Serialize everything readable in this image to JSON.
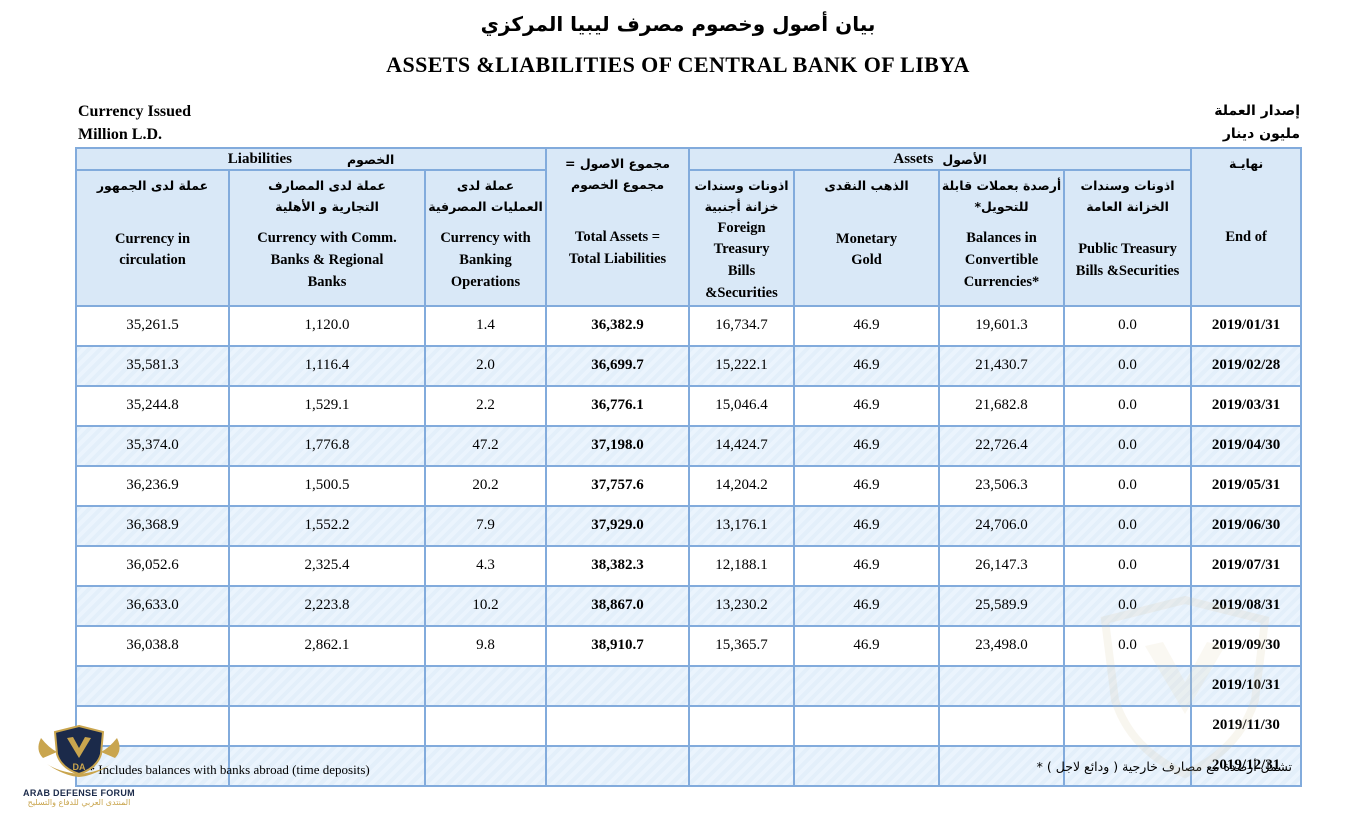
{
  "titles": {
    "arabic": "بيان أصول وخصوم مصرف ليبيا المركزي",
    "english": "ASSETS &LIABILITIES OF CENTRAL BANK OF LIBYA"
  },
  "corner_left": {
    "line1": "Currency Issued",
    "line2": "Million L.D."
  },
  "corner_right": {
    "line1": "إصدار العملة",
    "line2": "مليون دينار"
  },
  "groups": {
    "liabilities": {
      "en": "Liabilities",
      "ar": "الخصوم"
    },
    "assets": {
      "en": "Assets",
      "ar": "الأصول"
    }
  },
  "columns": [
    {
      "key": "currency-in-circulation",
      "ar": "عملة لدى الجمهور",
      "en": "Currency in\ncirculation"
    },
    {
      "key": "currency-with-comm-banks",
      "ar": "عملة لدى  المصارف\nالتجارية و الأهلية",
      "en": "Currency with Comm.\nBanks & Regional\nBanks"
    },
    {
      "key": "currency-with-banking-operations",
      "ar": "عملة لدى\nالعمليات المصرفية",
      "en": "Currency with\nBanking\nOperations"
    },
    {
      "key": "total-assets-total-liabilities",
      "ar": "مجموع الاصول =\nمجموع الخصوم",
      "en": "Total Assets =\nTotal Liabilities"
    },
    {
      "key": "foreign-treasury-bills-securities",
      "ar": "اذونات وسندات\nخزانة  أجنبية",
      "en": "Foreign\nTreasury\nBills\n&Securities"
    },
    {
      "key": "monetary-gold",
      "ar": "الذهب النقدى",
      "en": "Monetary\nGold"
    },
    {
      "key": "balances-in-convertible-currencies",
      "ar": "أرصدة بعملات قابلة\nللتحويل*",
      "en": "Balances in\nConvertible\nCurrencies*"
    },
    {
      "key": "public-treasury-bills-securities",
      "ar": "اذونات وسندات\nالخزانة العامة",
      "en": "Public Treasury\nBills &Securities"
    },
    {
      "key": "end-of",
      "ar": "نهايـة",
      "en": "End  of"
    }
  ],
  "table": {
    "column_keys": [
      "currency-in-circulation",
      "currency-with-comm-banks",
      "currency-with-banking-operations",
      "total-assets-total-liabilities",
      "foreign-treasury-bills-securities",
      "monetary-gold",
      "balances-in-convertible-currencies",
      "public-treasury-bills-securities",
      "end-of"
    ],
    "rows": [
      [
        "35,261.5",
        "1,120.0",
        "1.4",
        "36,382.9",
        "16,734.7",
        "46.9",
        "19,601.3",
        "0.0",
        "2019/01/31"
      ],
      [
        "35,581.3",
        "1,116.4",
        "2.0",
        "36,699.7",
        "15,222.1",
        "46.9",
        "21,430.7",
        "0.0",
        "2019/02/28"
      ],
      [
        "35,244.8",
        "1,529.1",
        "2.2",
        "36,776.1",
        "15,046.4",
        "46.9",
        "21,682.8",
        "0.0",
        "2019/03/31"
      ],
      [
        "35,374.0",
        "1,776.8",
        "47.2",
        "37,198.0",
        "14,424.7",
        "46.9",
        "22,726.4",
        "0.0",
        "2019/04/30"
      ],
      [
        "36,236.9",
        "1,500.5",
        "20.2",
        "37,757.6",
        "14,204.2",
        "46.9",
        "23,506.3",
        "0.0",
        "2019/05/31"
      ],
      [
        "36,368.9",
        "1,552.2",
        "7.9",
        "37,929.0",
        "13,176.1",
        "46.9",
        "24,706.0",
        "0.0",
        "2019/06/30"
      ],
      [
        "36,052.6",
        "2,325.4",
        "4.3",
        "38,382.3",
        "12,188.1",
        "46.9",
        "26,147.3",
        "0.0",
        "2019/07/31"
      ],
      [
        "36,633.0",
        "2,223.8",
        "10.2",
        "38,867.0",
        "13,230.2",
        "46.9",
        "25,589.9",
        "0.0",
        "2019/08/31"
      ],
      [
        "36,038.8",
        "2,862.1",
        "9.8",
        "38,910.7",
        "15,365.7",
        "46.9",
        "23,498.0",
        "0.0",
        "2019/09/30"
      ],
      [
        "",
        "",
        "",
        "",
        "",
        "",
        "",
        "",
        "2019/10/31"
      ],
      [
        "",
        "",
        "",
        "",
        "",
        "",
        "",
        "",
        "2019/11/30"
      ],
      [
        "",
        "",
        "",
        "",
        "",
        "",
        "",
        "",
        "2019/12/31"
      ]
    ]
  },
  "footnotes": {
    "english": "Includes balances with  banks abroad (time deposits)",
    "english_marker": "*",
    "arabic": "* تشمل أرصدة مع مصارف خارجية ( ودائع لاجل )"
  },
  "logo": {
    "monogram": "DA",
    "title": "ARAB DEFENSE FORUM",
    "subtitle_ar": "المنتدى العربي للدفاع والتسليح"
  }
}
